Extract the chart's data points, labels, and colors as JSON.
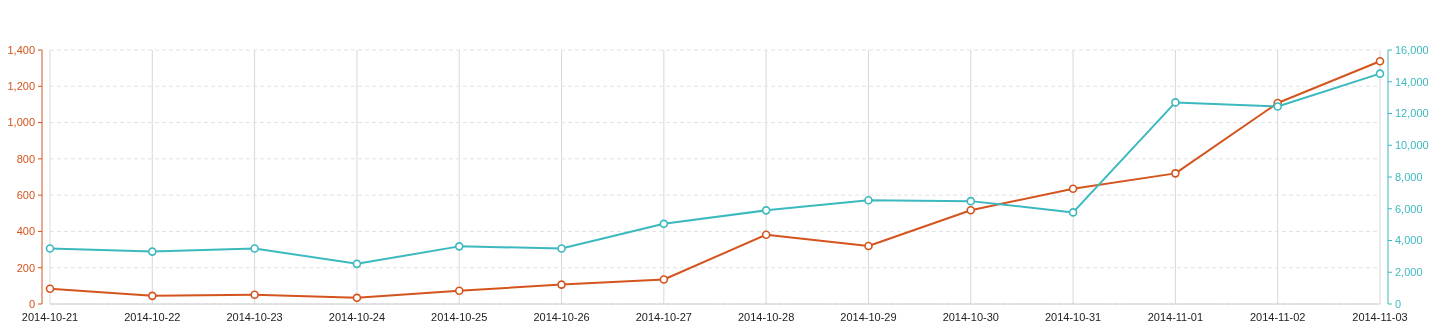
{
  "chart_data": {
    "type": "line",
    "categories": [
      "2014-10-21",
      "2014-10-22",
      "2014-10-23",
      "2014-10-24",
      "2014-10-25",
      "2014-10-26",
      "2014-10-27",
      "2014-10-28",
      "2014-10-29",
      "2014-10-30",
      "2014-10-31",
      "2014-11-01",
      "2014-11-02",
      "2014-11-03"
    ],
    "series": [
      {
        "color": "#d4541e",
        "values": [
          84,
          45,
          51,
          34,
          73,
          107,
          135,
          382,
          320,
          517,
          635,
          720,
          1108,
          1338
        ]
      },
      {
        "color": "#3cb9bf",
        "axis": "y2",
        "values": [
          3500,
          3300,
          3500,
          2530,
          3630,
          3500,
          5050,
          5900,
          6540,
          6480,
          5770,
          12700,
          12440,
          14510
        ]
      }
    ],
    "ylim": [
      0,
      1400
    ],
    "yticks": [
      0,
      200,
      400,
      600,
      800,
      {
        "value": 1000,
        "label": "1,000"
      },
      {
        "value": 1200,
        "label": "1,200"
      },
      {
        "value": 1400,
        "label": "1,400"
      }
    ],
    "y2lim": [
      0,
      16000
    ],
    "y2ticks": [
      0,
      {
        "value": 2000,
        "label": "2,000"
      },
      {
        "value": 4000,
        "label": "4,000"
      },
      {
        "value": 6000,
        "label": "6,000"
      },
      {
        "value": 8000,
        "label": "8,000"
      },
      {
        "value": 10000,
        "label": "10,000"
      },
      {
        "value": 12000,
        "label": "12,000"
      },
      {
        "value": 14000,
        "label": "14,000"
      },
      {
        "value": 16000,
        "label": "16,000"
      }
    ],
    "grid": true,
    "marker": "circle",
    "line_style": "solid"
  }
}
